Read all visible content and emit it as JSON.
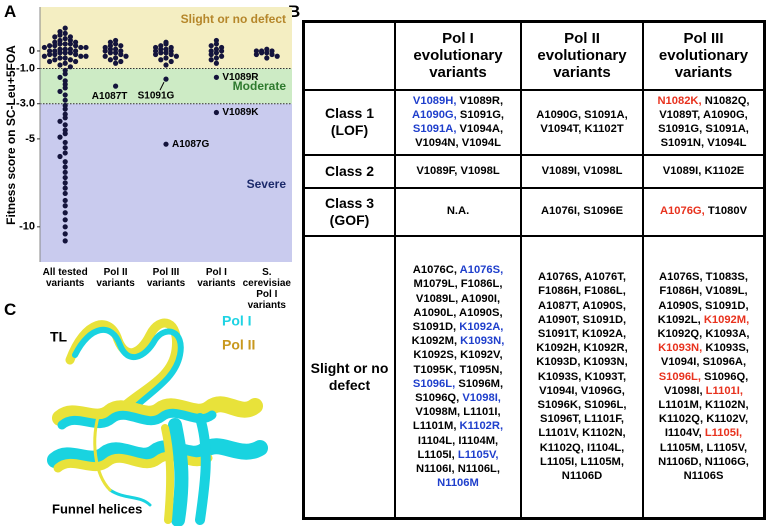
{
  "panel_labels": [
    "A",
    "B",
    "C"
  ],
  "chart_data": {
    "type": "strip",
    "y_label": "Fitness score on SC-Leu+5FOA",
    "categories": [
      "All tested variants",
      "Pol II variants",
      "Pol III variants",
      "Pol I variants",
      "S. cerevisiae Pol I variants"
    ],
    "color": "#14143c",
    "ylim": [
      -12,
      2.5
    ],
    "yticks": [
      0,
      {
        "value": -1,
        "label": "-1.0"
      },
      {
        "value": -3,
        "label": "-3.0"
      },
      -5,
      -10
    ],
    "regions": [
      {
        "label": "Slight or no defect",
        "color": "#f4eec2",
        "label_color": "#b5862a",
        "min": -1
      },
      {
        "label": "Moderate",
        "color": "#cdebc5",
        "label_color": "#2e7a2e",
        "min": -3,
        "max": -1
      },
      {
        "label": "Severe",
        "color": "#c9cbee",
        "label_color": "#1c2a6b",
        "max": -3
      }
    ],
    "series": [
      {
        "values": [
          1.3,
          1.1,
          1.0,
          0.9,
          0.8,
          0.8,
          0.7,
          0.6,
          0.6,
          0.5,
          0.5,
          0.4,
          0.4,
          0.4,
          0.3,
          0.3,
          0.3,
          0.2,
          0.2,
          0.2,
          0.1,
          0.1,
          0.1,
          0.0,
          0.0,
          0.0,
          -0.1,
          -0.1,
          -0.1,
          -0.2,
          -0.2,
          -0.2,
          -0.3,
          -0.3,
          -0.3,
          -0.4,
          -0.4,
          -0.5,
          -0.5,
          -0.6,
          -0.6,
          -0.7,
          -0.8,
          -0.9,
          -1.1,
          -1.3,
          -1.5,
          -1.7,
          -1.9,
          -2.1,
          -2.3,
          -2.5,
          -2.8,
          -3.1,
          -3.3,
          -3.6,
          -3.8,
          -4.0,
          -4.2,
          -4.5,
          -4.7,
          -4.9,
          -5.2,
          -5.5,
          -5.8,
          -6.0,
          -6.3,
          -6.6,
          -6.9,
          -7.2,
          -7.5,
          -7.8,
          -8.1,
          -8.5,
          -8.8,
          -9.2,
          -9.6,
          -10.0,
          -10.4,
          -10.8
        ],
        "point_labels": [
          null,
          null,
          null,
          null,
          null,
          null,
          null,
          null,
          null,
          null,
          null,
          null,
          null,
          null,
          null,
          null,
          null,
          null,
          null,
          null,
          null,
          null,
          null,
          null,
          null,
          null,
          null,
          null,
          null,
          null,
          null,
          null,
          null,
          null,
          null,
          null,
          null,
          null,
          null,
          null,
          null,
          null,
          null,
          null,
          null,
          null,
          null,
          null,
          null,
          null,
          null,
          null,
          null,
          null,
          null,
          null,
          null,
          null,
          null,
          null,
          null,
          null,
          null,
          null,
          null,
          null,
          null,
          null,
          null,
          null,
          null,
          null,
          null,
          null,
          null,
          null,
          null,
          null,
          null,
          null
        ]
      },
      {
        "values": [
          0.6,
          0.5,
          0.4,
          0.3,
          0.3,
          0.2,
          0.1,
          0.1,
          0.0,
          0.0,
          -0.1,
          -0.1,
          -0.2,
          -0.3,
          -0.3,
          -0.4,
          -0.5,
          -0.6,
          -0.7,
          -2.0
        ],
        "point_labels": [
          null,
          null,
          null,
          null,
          null,
          null,
          null,
          null,
          null,
          null,
          null,
          null,
          null,
          null,
          null,
          null,
          null,
          null,
          null,
          "A1087T"
        ]
      },
      {
        "values": [
          0.5,
          0.4,
          0.3,
          0.2,
          0.2,
          0.1,
          0.1,
          0.0,
          0.0,
          -0.1,
          -0.1,
          -0.2,
          -0.2,
          -0.3,
          -0.4,
          -0.5,
          -0.6,
          -0.8,
          -1.6,
          -5.3
        ],
        "point_labels": [
          null,
          null,
          null,
          null,
          null,
          null,
          null,
          null,
          null,
          null,
          null,
          null,
          null,
          null,
          null,
          null,
          null,
          null,
          "S1091G",
          "A1087G"
        ]
      },
      {
        "values": [
          0.6,
          0.4,
          0.3,
          0.2,
          0.1,
          0.0,
          0.0,
          -0.1,
          -0.2,
          -0.3,
          -0.4,
          -0.5,
          -0.7,
          -1.5,
          -3.5
        ],
        "point_labels": [
          null,
          null,
          null,
          null,
          null,
          null,
          null,
          null,
          null,
          null,
          null,
          null,
          null,
          "V1089R",
          "V1089K"
        ]
      },
      {
        "values": [
          0.1,
          0.0,
          0.0,
          0.0,
          -0.1,
          -0.1,
          -0.2,
          -0.2,
          -0.3,
          -0.4
        ],
        "point_labels": [
          null,
          null,
          null,
          null,
          null,
          null,
          null,
          null,
          null,
          null
        ]
      }
    ]
  },
  "table": {
    "header": [
      "",
      "Pol I evolutionary variants",
      "Pol II evolutionary variants",
      "Pol III evolutionary variants"
    ],
    "rows": [
      {
        "label": "Class 1 (LOF)",
        "cells": [
          [
            {
              "t": "V1089H,",
              "c": "#1f3fcc"
            },
            "V1089R,",
            {
              "t": "A1090G,",
              "c": "#1f3fcc"
            },
            "S1091G,",
            {
              "t": "S1091A,",
              "c": "#1f3fcc"
            },
            "V1094A,",
            "V1094N,",
            "V1094L"
          ],
          [
            "A1090G,",
            "S1091A,",
            "V1094T,",
            "K1102T"
          ],
          [
            {
              "t": "N1082K,",
              "c": "#e8321e"
            },
            "N1082Q,",
            "V1089T,",
            "A1090G,",
            "S1091G,",
            "S1091A,",
            "S1091N,",
            "V1094L"
          ]
        ]
      },
      {
        "label": "Class 2",
        "cells": [
          [
            "V1089F,",
            "V1098L"
          ],
          [
            "V1089I,",
            "V1098L"
          ],
          [
            "V1089I,",
            "K1102E"
          ]
        ]
      },
      {
        "label": "Class 3 (GOF)",
        "cells": [
          [
            "N.A."
          ],
          [
            "A1076I,",
            "S1096E"
          ],
          [
            {
              "t": "A1076G,",
              "c": "#e8321e"
            },
            "T1080V"
          ]
        ]
      },
      {
        "label": "Slight or no defect",
        "cells": [
          [
            "A1076C,",
            {
              "t": "A1076S,",
              "c": "#1f3fcc"
            },
            "M1079L,",
            "F1086L,",
            "V1089L,",
            "A1090I,",
            "A1090L,",
            "A1090S,",
            "S1091D,",
            {
              "t": "K1092A,",
              "c": "#1f3fcc"
            },
            "K1092M,",
            {
              "t": "K1093N,",
              "c": "#1f3fcc"
            },
            "K1092S,",
            "K1092V,",
            "T1095K,",
            "T1095N,",
            {
              "t": "S1096L,",
              "c": "#1f3fcc"
            },
            "S1096M,",
            "S1096Q,",
            {
              "t": "V1098I,",
              "c": "#1f3fcc"
            },
            "V1098M,",
            "L1101I,",
            "L1101M,",
            {
              "t": "K1102R,",
              "c": "#1f3fcc"
            },
            "I1104L,",
            "I1104M,",
            "L1105I,",
            {
              "t": "L1105V,",
              "c": "#1f3fcc"
            },
            "N1106I,",
            "N1106L,",
            {
              "t": "N1106M",
              "c": "#1f3fcc"
            }
          ],
          [
            "A1076S,",
            "A1076T,",
            "F1086H,",
            "F1086L,",
            "A1087T,",
            "A1090S,",
            "A1090T,",
            "S1091D,",
            "S1091T,",
            "K1092A,",
            "K1092H,",
            "K1092R,",
            "K1093D,",
            "K1093N,",
            "K1093S,",
            "K1093T,",
            "V1094I,",
            "V1096G,",
            "S1096K,",
            "S1096L,",
            "S1096T,",
            "L1101F,",
            "L1101V,",
            "K1102N,",
            "K1102Q,",
            "I1104L,",
            "L1105I,",
            "L1105M,",
            "N1106D"
          ],
          [
            "A1076S,",
            "T1083S,",
            "F1086H,",
            "V1089L,",
            "A1090S,",
            "S1091D,",
            "K1092L,",
            {
              "t": "K1092M,",
              "c": "#e8321e"
            },
            "K1092Q,",
            "K1093A,",
            {
              "t": "K1093N,",
              "c": "#e8321e"
            },
            "K1093S,",
            "V1094I,",
            "S1096A,",
            {
              "t": "S1096L,",
              "c": "#e8321e"
            },
            "S1096Q,",
            "V1098I,",
            {
              "t": "L1101I,",
              "c": "#e8321e"
            },
            "L1101M,",
            "K1102N,",
            "K1102Q,",
            "K1102V,",
            "I1104V,",
            {
              "t": "L1105I,",
              "c": "#e8321e"
            },
            "L1105M,",
            "L1105V,",
            "N1106D,",
            "N1106G,",
            "N1106S"
          ]
        ]
      }
    ]
  },
  "structure": {
    "loop_label": "TL",
    "legend": [
      {
        "name": "Pol I",
        "color": "#1ed3e3"
      },
      {
        "name": "Pol II",
        "color": "#c8981e"
      }
    ],
    "helix_label": "Funnel helices"
  }
}
